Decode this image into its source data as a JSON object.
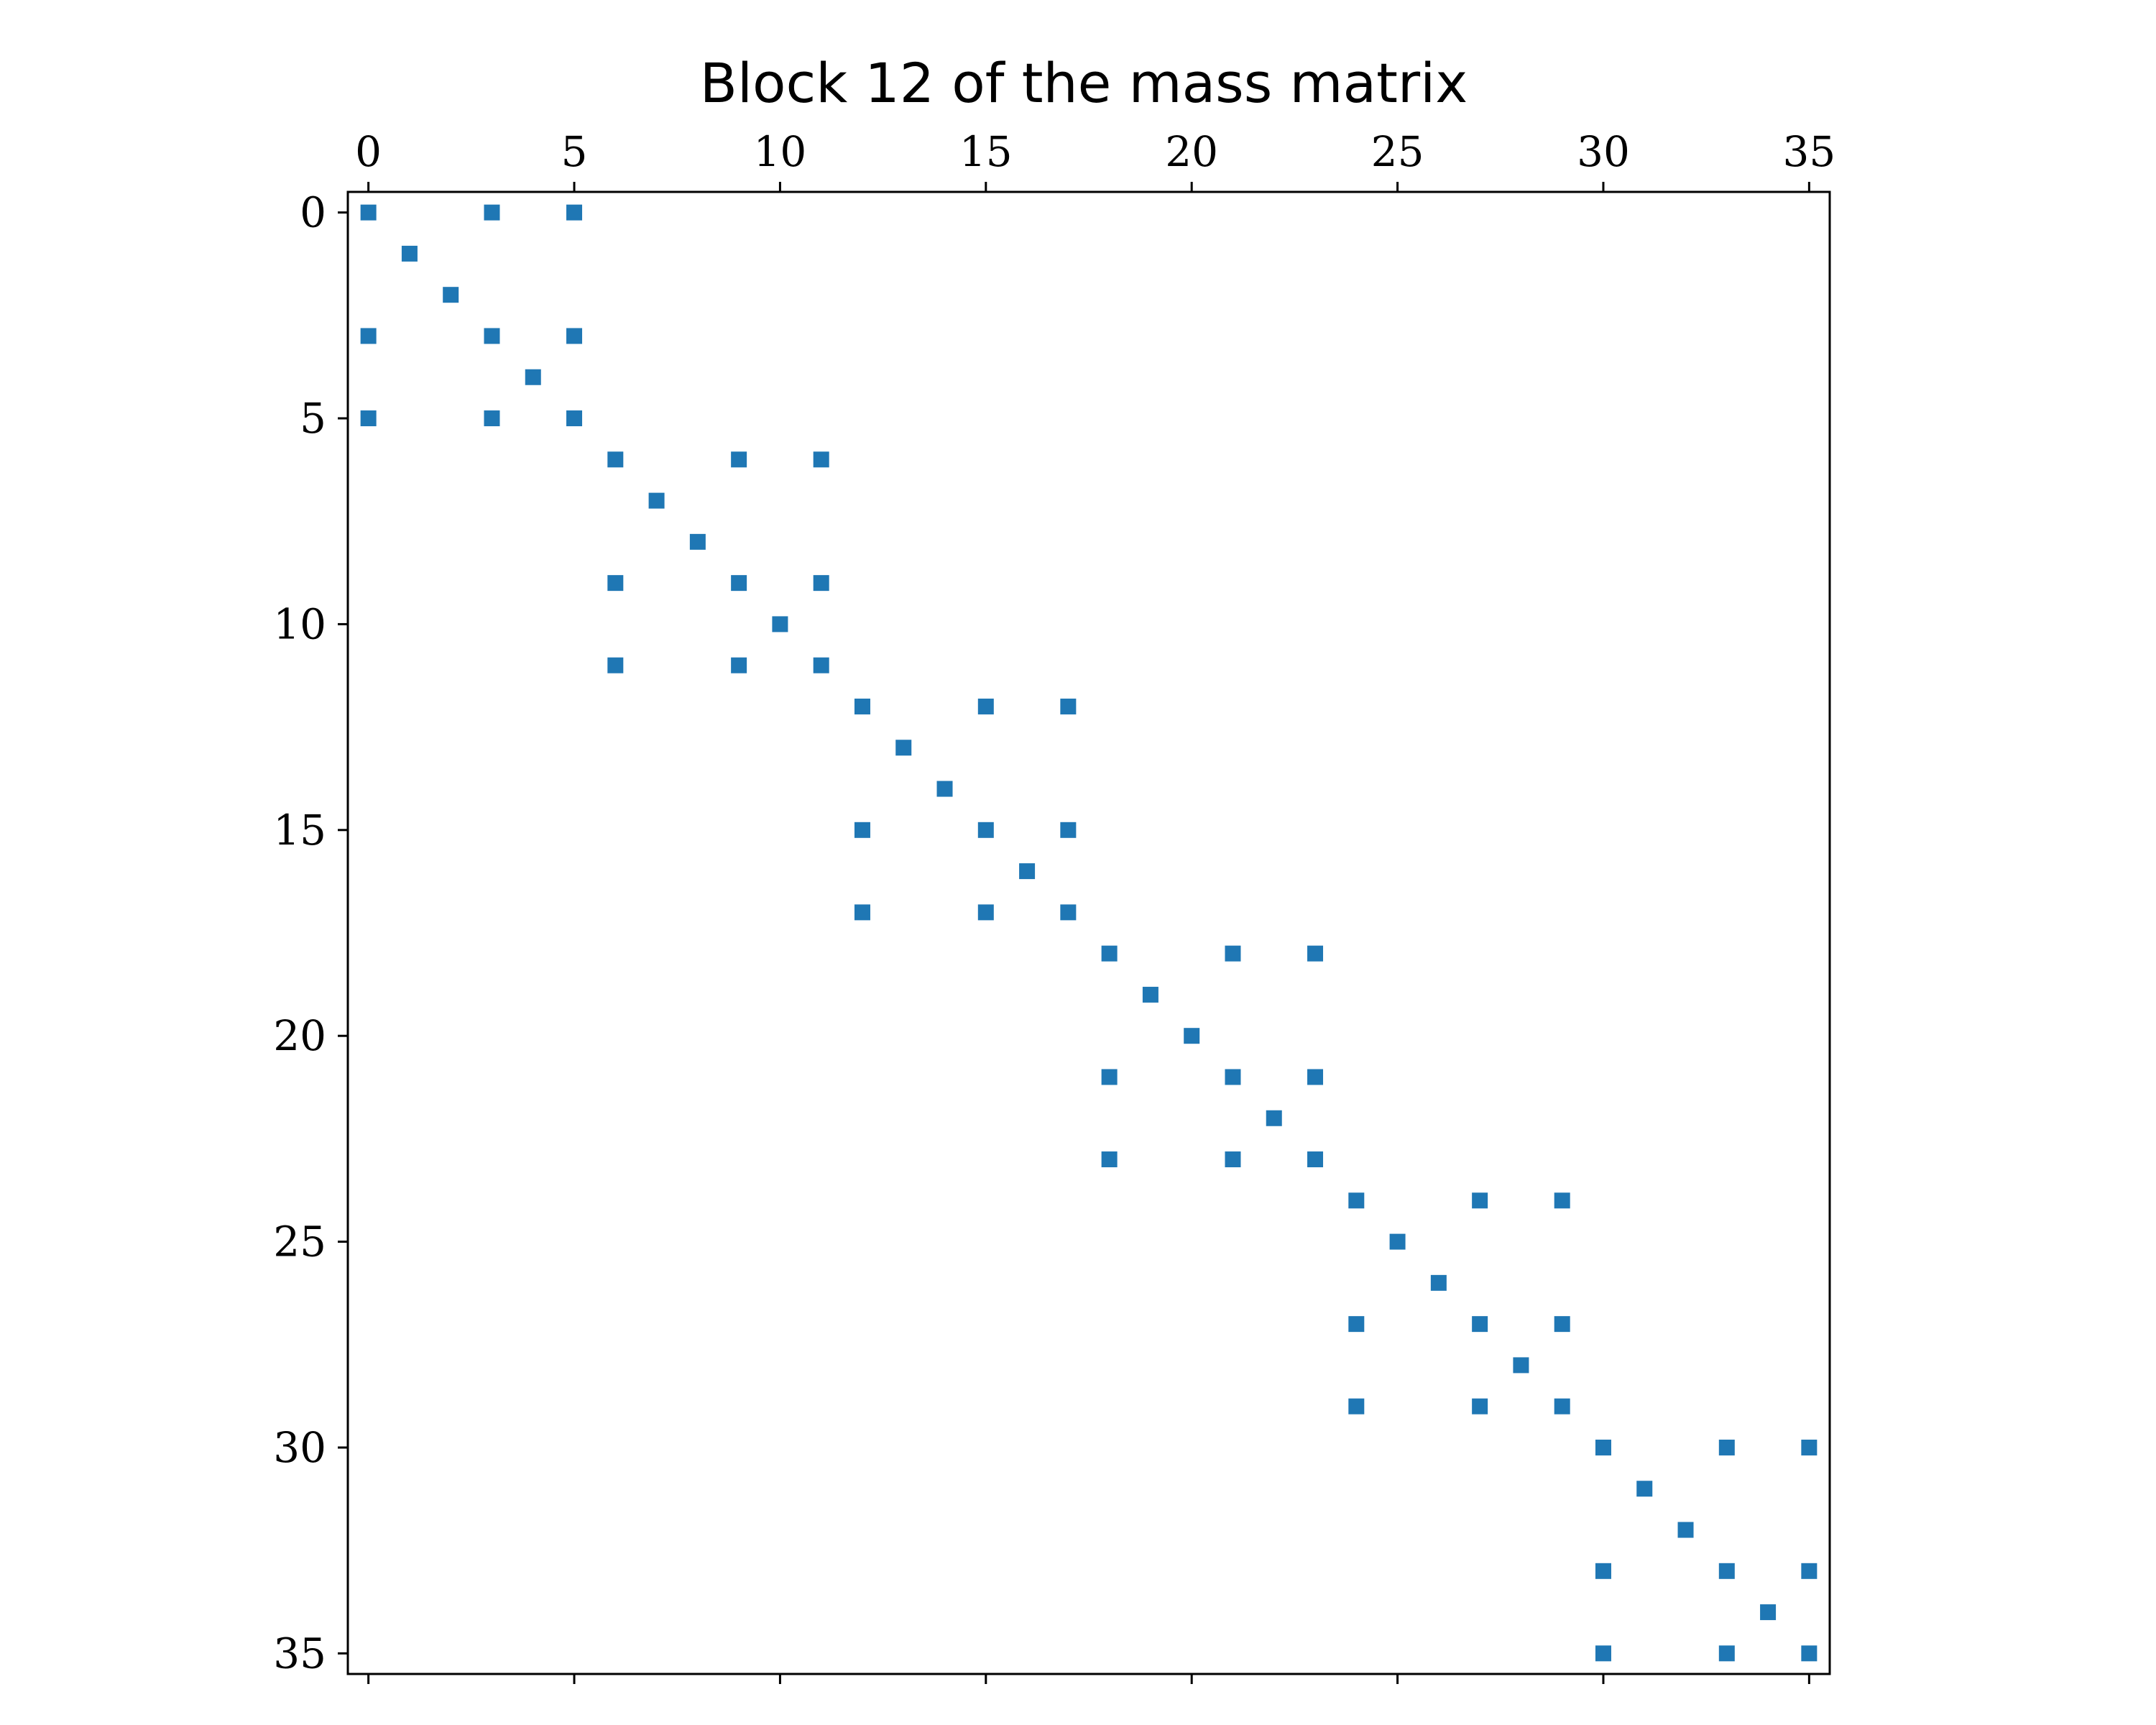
{
  "chart_data": {
    "type": "scatter",
    "title": "Block 12 of the mass matrix",
    "xlabel": "",
    "ylabel": "",
    "xlim": [
      -0.5,
      35.5
    ],
    "ylim": [
      35.5,
      -0.5
    ],
    "x_ticks_position": "top",
    "y_axis_inverted": true,
    "xticks": [
      0,
      5,
      10,
      15,
      20,
      25,
      30,
      35
    ],
    "yticks": [
      0,
      5,
      10,
      15,
      20,
      25,
      30,
      35
    ],
    "xtick_labels": [
      "0",
      "5",
      "10",
      "15",
      "20",
      "25",
      "30",
      "35"
    ],
    "ytick_labels": [
      "0",
      "5",
      "10",
      "15",
      "20",
      "25",
      "30",
      "35"
    ],
    "grid": false,
    "marker": "square",
    "color": "#1f77b4",
    "block_size": 6,
    "block_count": 6,
    "block_pattern_offsets": [
      [
        0,
        0
      ],
      [
        0,
        3
      ],
      [
        0,
        5
      ],
      [
        1,
        1
      ],
      [
        2,
        2
      ],
      [
        3,
        0
      ],
      [
        3,
        3
      ],
      [
        3,
        5
      ],
      [
        4,
        4
      ],
      [
        5,
        0
      ],
      [
        5,
        3
      ],
      [
        5,
        5
      ]
    ]
  }
}
